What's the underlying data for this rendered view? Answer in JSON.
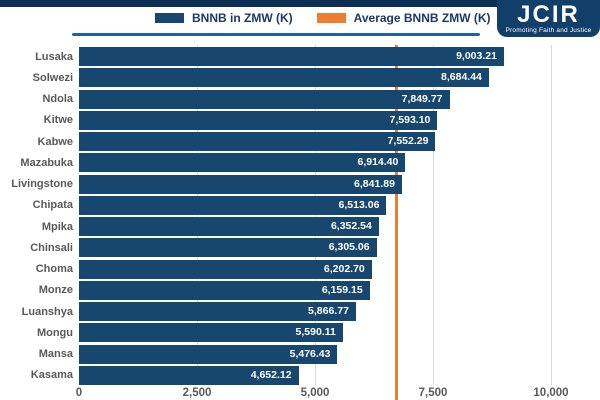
{
  "logo": {
    "text": "JCIR",
    "tagline": "Promoting Faith and Justice"
  },
  "legend": {
    "items": [
      {
        "label": "BNNB in ZMW (K)",
        "color": "#17476e"
      },
      {
        "label": "Average BNNB ZMW (K)",
        "color": "#ed7d31"
      }
    ]
  },
  "chart_data": {
    "type": "bar",
    "orientation": "horizontal",
    "categories": [
      "Lusaka",
      "Solwezi",
      "Ndola",
      "Kitwe",
      "Kabwe",
      "Mazabuka",
      "Livingstone",
      "Chipata",
      "Mpika",
      "Chinsali",
      "Choma",
      "Monze",
      "Luanshya",
      "Mongu",
      "Mansa",
      "Kasama"
    ],
    "values": [
      9003.21,
      8684.44,
      7849.77,
      7593.1,
      7552.29,
      6914.4,
      6841.89,
      6513.06,
      6352.54,
      6305.06,
      6202.7,
      6159.15,
      5866.77,
      5590.11,
      5476.43,
      4652.12
    ],
    "value_labels": [
      "9,003.21",
      "8,684.44",
      "7,849.77",
      "7,593.10",
      "7,552.29",
      "6,914.40",
      "6,841.89",
      "6,513.06",
      "6,352.54",
      "6,305.06",
      "6,202.70",
      "6,159.15",
      "5,866.77",
      "5,590.11",
      "5,476.43",
      "4,652.12"
    ],
    "series_name": "BNNB in ZMW (K)",
    "average_line": {
      "label": "Average BNNB ZMW (K)",
      "value": 6722.32,
      "color": "#ed7d31"
    },
    "x_ticks": [
      {
        "label": "0",
        "value": 0
      },
      {
        "label": "2,500",
        "value": 2500
      },
      {
        "label": "5,000",
        "value": 5000
      },
      {
        "label": "7,500",
        "value": 7500
      },
      {
        "label": "10,000",
        "value": 10000
      }
    ],
    "xlim": [
      0,
      10000
    ],
    "grid": true,
    "legend_position": "top",
    "bar_color": "#17476e",
    "label_color": "#595959"
  }
}
